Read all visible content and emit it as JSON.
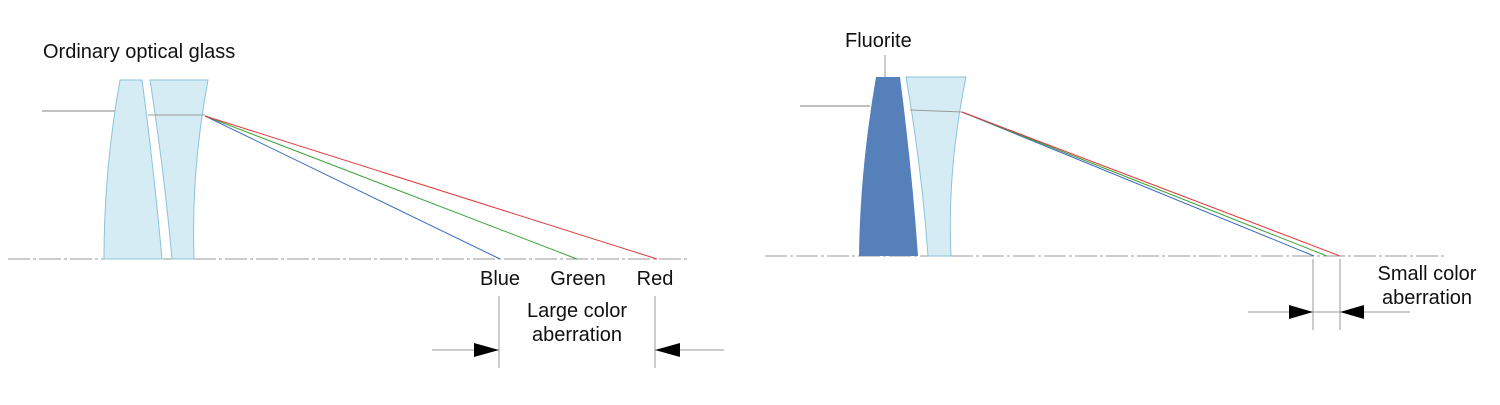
{
  "left_panel": {
    "title": "Ordinary optical glass",
    "labels": {
      "blue": "Blue",
      "green": "Green",
      "red": "Red"
    },
    "aberration_line1": "Large color",
    "aberration_line2": "aberration"
  },
  "right_panel": {
    "title": "Fluorite",
    "aberration_line1": "Small color",
    "aberration_line2": "aberration"
  },
  "colors": {
    "glass_fill": "#d6ecf4",
    "glass_stroke": "#8cc3d8",
    "fluorite_fill": "#5580ba",
    "ray_red": "#e03a3a",
    "ray_green": "#3aa23a",
    "ray_blue": "#3a6ac0",
    "axis": "#9a9a9a",
    "dimension": "#999999",
    "arrow": "#000000"
  }
}
